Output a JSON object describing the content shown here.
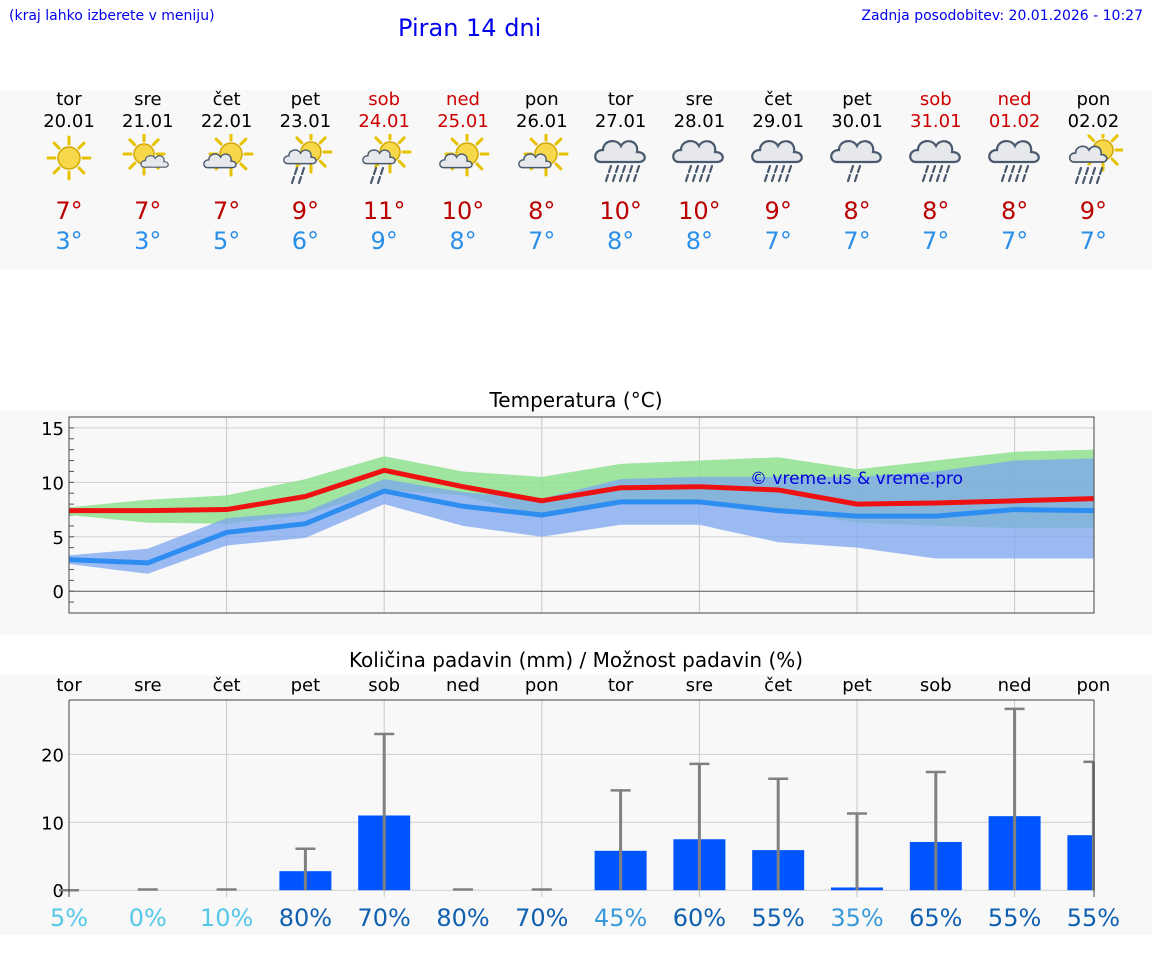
{
  "header": {
    "hint": "(kraj lahko izberete v meniju)",
    "title": "Piran 14 dni",
    "updated": "Zadnja posodobitev: 20.01.2026 - 10:27"
  },
  "days": [
    {
      "name": "tor",
      "date": "20.01",
      "weekend": false,
      "icon": "sun-icon",
      "tmax": "7°",
      "tmin": "3°"
    },
    {
      "name": "sre",
      "date": "21.01",
      "weekend": false,
      "icon": "sun-small-cloud-icon",
      "tmax": "7°",
      "tmin": "3°"
    },
    {
      "name": "čet",
      "date": "22.01",
      "weekend": false,
      "icon": "partly-cloudy-icon",
      "tmax": "7°",
      "tmin": "5°"
    },
    {
      "name": "pet",
      "date": "23.01",
      "weekend": false,
      "icon": "sun-cloud-rain-icon",
      "tmax": "9°",
      "tmin": "6°"
    },
    {
      "name": "sob",
      "date": "24.01",
      "weekend": true,
      "icon": "sun-cloud-rain-icon",
      "tmax": "11°",
      "tmin": "9°"
    },
    {
      "name": "ned",
      "date": "25.01",
      "weekend": true,
      "icon": "partly-cloudy-icon",
      "tmax": "10°",
      "tmin": "8°"
    },
    {
      "name": "pon",
      "date": "26.01",
      "weekend": false,
      "icon": "partly-cloudy-icon",
      "tmax": "8°",
      "tmin": "7°"
    },
    {
      "name": "tor",
      "date": "27.01",
      "weekend": false,
      "icon": "cloud-heavy-rain-icon",
      "tmax": "10°",
      "tmin": "8°"
    },
    {
      "name": "sre",
      "date": "28.01",
      "weekend": false,
      "icon": "cloud-rain-icon",
      "tmax": "10°",
      "tmin": "8°"
    },
    {
      "name": "čet",
      "date": "29.01",
      "weekend": false,
      "icon": "cloud-rain-icon",
      "tmax": "9°",
      "tmin": "7°"
    },
    {
      "name": "pet",
      "date": "30.01",
      "weekend": false,
      "icon": "cloud-light-rain-icon",
      "tmax": "8°",
      "tmin": "7°"
    },
    {
      "name": "sob",
      "date": "31.01",
      "weekend": true,
      "icon": "cloud-rain-icon",
      "tmax": "8°",
      "tmin": "7°"
    },
    {
      "name": "ned",
      "date": "01.02",
      "weekend": true,
      "icon": "cloud-rain-icon",
      "tmax": "8°",
      "tmin": "7°"
    },
    {
      "name": "pon",
      "date": "02.02",
      "weekend": false,
      "icon": "sun-cloud-heavy-rain-icon",
      "tmax": "9°",
      "tmin": "7°"
    }
  ],
  "colors": {
    "max_line": "#ee1111",
    "min_line": "#2e8df0",
    "max_band": "#8fe08f",
    "min_band": "#7ea6f0",
    "bar": "#0055ff",
    "whisker": "#808080",
    "weekend": "#cc0000"
  },
  "chart_data": [
    {
      "type": "line",
      "title": "Temperatura (°C)",
      "watermark": "© vreme.us & vreme.pro",
      "ylim": [
        -2,
        16
      ],
      "yticks": [
        0,
        5,
        10,
        15
      ],
      "x": [
        0,
        1,
        2,
        3,
        4,
        5,
        6,
        7,
        8,
        9,
        10,
        11,
        12,
        13
      ],
      "series": [
        {
          "name": "max",
          "values": [
            7.4,
            7.4,
            7.5,
            8.7,
            11.1,
            9.6,
            8.3,
            9.5,
            9.6,
            9.3,
            8.0,
            8.1,
            8.3,
            8.5
          ],
          "band_low": [
            7.0,
            6.3,
            6.2,
            7.0,
            9.3,
            8.8,
            6.8,
            8.2,
            8.3,
            7.5,
            6.3,
            6.0,
            5.8,
            5.8
          ],
          "band_high": [
            7.7,
            8.4,
            8.8,
            10.3,
            12.4,
            11.0,
            10.5,
            11.7,
            12.0,
            12.3,
            11.2,
            12.0,
            12.8,
            13.0
          ]
        },
        {
          "name": "min",
          "values": [
            2.9,
            2.6,
            5.4,
            6.2,
            9.2,
            7.8,
            7.0,
            8.2,
            8.2,
            7.4,
            6.9,
            6.9,
            7.5,
            7.4
          ],
          "band_low": [
            2.5,
            1.6,
            4.2,
            4.9,
            8.0,
            6.0,
            5.0,
            6.1,
            6.1,
            4.5,
            4.0,
            3.0,
            3.0,
            3.0
          ],
          "band_high": [
            3.3,
            3.9,
            6.7,
            7.3,
            10.3,
            9.1,
            8.5,
            10.3,
            10.5,
            10.5,
            10.5,
            11.0,
            12.0,
            12.2
          ]
        }
      ]
    },
    {
      "type": "bar",
      "title": "Količina padavin (mm) / Možnost padavin (%)",
      "ylim": [
        -1,
        28
      ],
      "yticks": [
        0,
        10,
        20
      ],
      "categories": [
        "tor",
        "sre",
        "čet",
        "pet",
        "sob",
        "ned",
        "pon",
        "tor",
        "sre",
        "čet",
        "pet",
        "sob",
        "ned",
        "pon"
      ],
      "values": [
        0,
        0,
        0,
        2.8,
        11.0,
        0,
        0,
        5.8,
        7.5,
        5.9,
        0.4,
        7.1,
        10.9,
        8.1
      ],
      "whisker_high": [
        0,
        0.1,
        0.1,
        6.1,
        23.0,
        0.1,
        0.1,
        14.7,
        18.6,
        16.4,
        11.3,
        17.4,
        26.7,
        18.9
      ],
      "probability": [
        "5%",
        "0%",
        "10%",
        "80%",
        "70%",
        "80%",
        "70%",
        "45%",
        "60%",
        "55%",
        "35%",
        "65%",
        "55%",
        "55%"
      ],
      "probability_colors": [
        "#55c8e8",
        "#55c8e8",
        "#55c8e8",
        "#1060b0",
        "#1060b0",
        "#1060b0",
        "#1060b0",
        "#3a9ad8",
        "#1060b0",
        "#1060b0",
        "#3a9ad8",
        "#1060b0",
        "#1060b0",
        "#1060b0"
      ]
    }
  ]
}
